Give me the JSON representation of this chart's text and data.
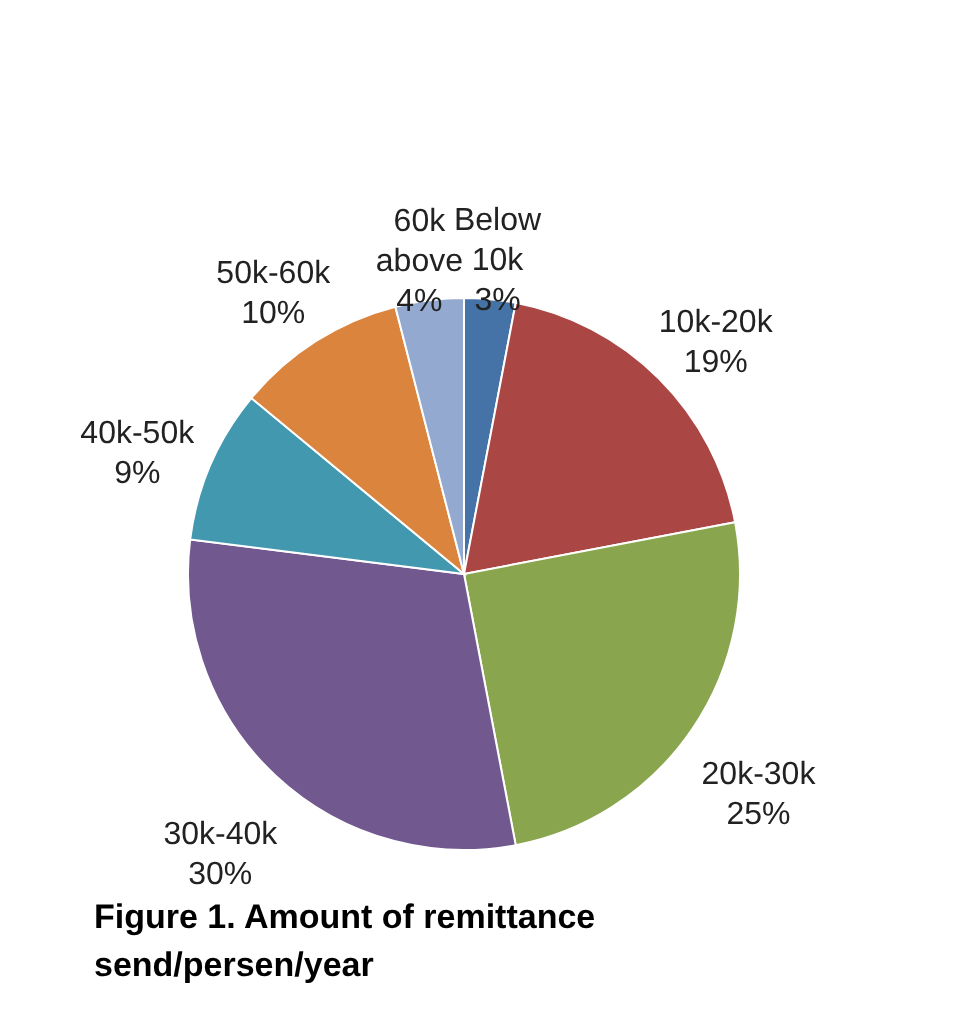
{
  "chart_data": {
    "type": "pie",
    "title": "Figure 1. Amount of remittance send/persen/year",
    "categories": [
      "Below 10k",
      "10k-20k",
      "20k-30k",
      "30k-40k",
      "40k-50k",
      "50k-60k",
      "60k above"
    ],
    "values": [
      3,
      19,
      25,
      30,
      9,
      10,
      4
    ],
    "value_labels": [
      "3%",
      "19%",
      "25%",
      "30%",
      "9%",
      "10%",
      "4%"
    ],
    "colors": [
      "#4572a7",
      "#aa4643",
      "#89a54e",
      "#71588f",
      "#4198af",
      "#db843d",
      "#93a9cf"
    ],
    "legend": false
  }
}
